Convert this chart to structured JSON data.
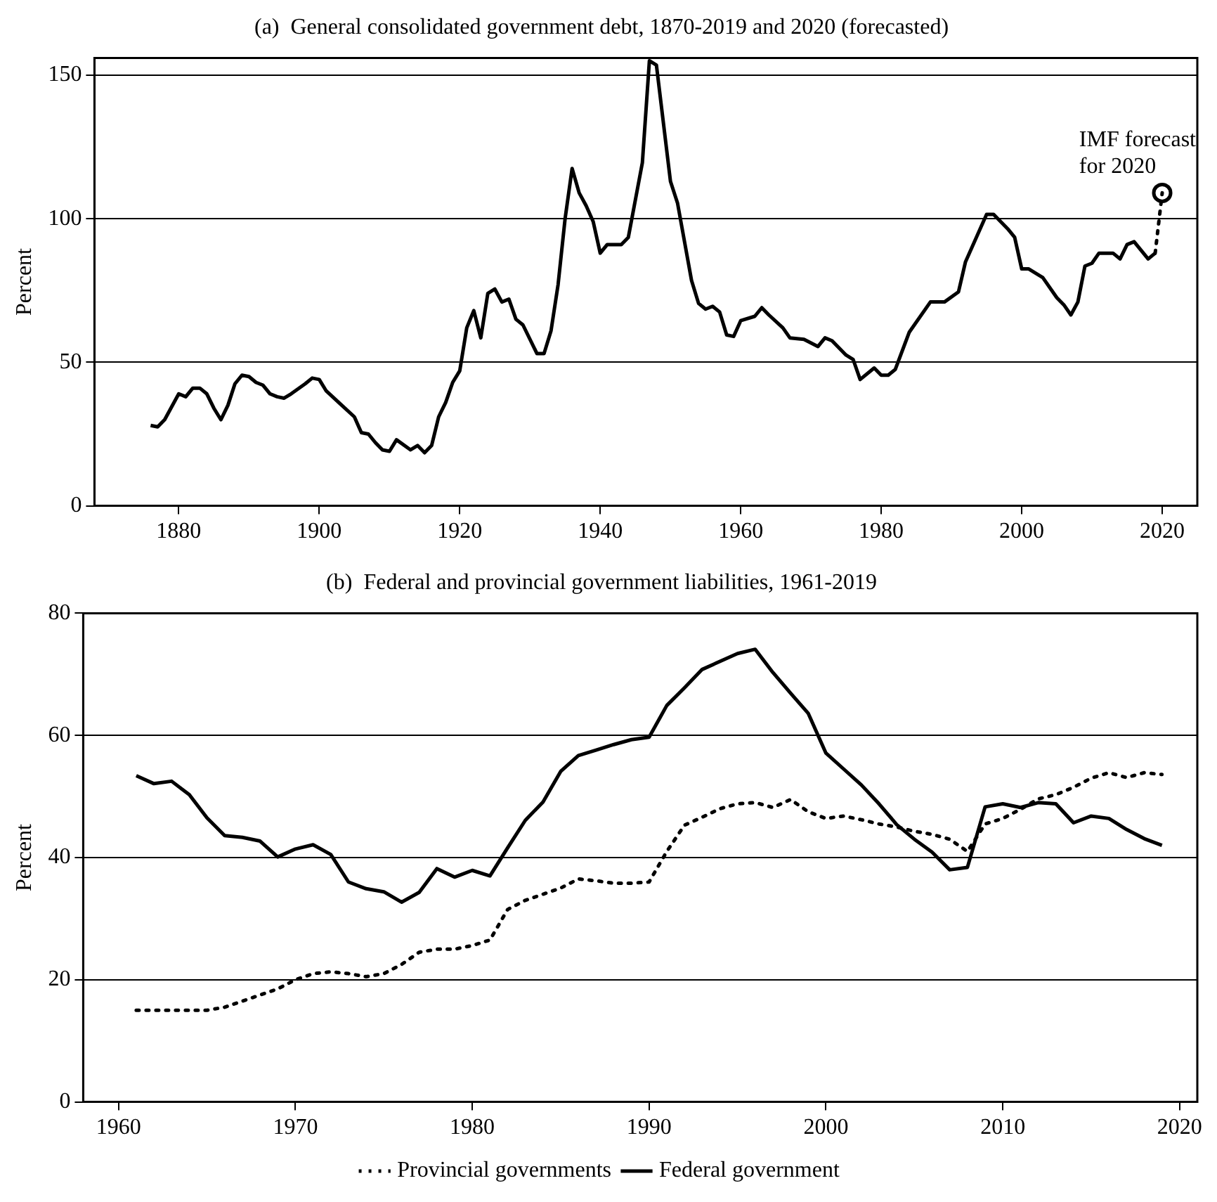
{
  "chart_data": [
    {
      "type": "line",
      "title": "(a)  General consolidated government debt, 1870-2019 and 2020 (forecasted)",
      "ylabel": "Percent",
      "xlim": [
        1868,
        2025
      ],
      "xticks": [
        1880,
        1900,
        1920,
        1940,
        1960,
        1980,
        2000,
        2020
      ],
      "ylim": [
        0,
        156
      ],
      "yticks": [
        0,
        50,
        100,
        150
      ],
      "grid": "y",
      "legend": false,
      "marker": "none",
      "series": [
        {
          "color": "#000000",
          "line_style": "solid",
          "x": [
            1876,
            1877,
            1878,
            1880,
            1881,
            1882,
            1883,
            1884,
            1885,
            1886,
            1887,
            1888,
            1889,
            1890,
            1891,
            1892,
            1893,
            1894,
            1895,
            1896,
            1898,
            1899,
            1900,
            1901,
            1903,
            1905,
            1906,
            1907,
            1908,
            1909,
            1910,
            1911,
            1913,
            1914,
            1915,
            1916,
            1917,
            1918,
            1919,
            1920,
            1921,
            1922,
            1923,
            1924,
            1925,
            1926,
            1927,
            1928,
            1929,
            1931,
            1932,
            1933,
            1934,
            1935,
            1936,
            1937,
            1938,
            1939,
            1940,
            1941,
            1943,
            1944,
            1946,
            1947,
            1948,
            1950,
            1951,
            1953,
            1954,
            1955,
            1956,
            1957,
            1958,
            1959,
            1960,
            1962,
            1963,
            1964,
            1966,
            1967,
            1969,
            1971,
            1972,
            1973,
            1975,
            1976,
            1977,
            1979,
            1980,
            1981,
            1982,
            1984,
            1987,
            1988,
            1989,
            1991,
            1992,
            1994,
            1995,
            1996,
            1998,
            1999,
            2000,
            2001,
            2003,
            2005,
            2006,
            2007,
            2008,
            2009,
            2010,
            2011,
            2013,
            2014,
            2015,
            2016,
            2017,
            2018,
            2019
          ],
          "values": [
            28,
            27.5,
            30,
            39,
            38,
            41,
            41,
            39,
            34,
            30,
            35,
            42.5,
            45.5,
            45,
            43,
            42,
            39,
            38,
            37.5,
            39,
            42.5,
            44.5,
            44,
            40,
            35.5,
            31,
            25.5,
            25,
            22,
            19.5,
            19,
            23,
            19.5,
            21,
            18.5,
            21,
            31,
            36,
            43,
            47,
            62,
            68,
            58.5,
            74,
            75.5,
            71,
            72,
            65,
            63,
            53,
            53,
            61,
            77,
            100,
            117.5,
            109,
            104.5,
            99,
            88,
            91,
            91,
            93.5,
            119.5,
            155,
            153.5,
            113,
            105.5,
            78.5,
            70.5,
            68.5,
            69.5,
            67.5,
            59.5,
            59,
            64.5,
            66,
            69,
            66.5,
            62,
            58.5,
            58,
            55.5,
            58.5,
            57.5,
            52.5,
            51,
            44,
            48,
            45.5,
            45.5,
            47.5,
            60.5,
            71,
            71,
            71,
            74.5,
            85,
            96,
            101.5,
            101.5,
            96.5,
            93.5,
            82.5,
            82.5,
            79.5,
            72.5,
            70,
            66.5,
            71,
            83.5,
            84.5,
            88,
            88,
            86,
            91,
            92,
            89,
            86,
            88
          ]
        },
        {
          "color": "#000000",
          "line_style": "dotted",
          "x": [
            2019,
            2020
          ],
          "values": [
            88,
            109
          ]
        },
        {
          "type": "scatter",
          "color": "#000000",
          "marker": "circle",
          "x": [
            2020
          ],
          "values": [
            109
          ]
        }
      ],
      "annotations": [
        {
          "text": "IMF forecast for 2020",
          "x": 2020,
          "y": 109
        }
      ]
    },
    {
      "type": "line",
      "title": "(b)  Federal and provincial government liabilities, 1961-2019",
      "ylabel": "Percent",
      "xlim": [
        1958,
        2021
      ],
      "xticks": [
        1960,
        1970,
        1980,
        1990,
        2000,
        2010,
        2020
      ],
      "ylim": [
        0,
        80
      ],
      "yticks": [
        0,
        20,
        40,
        60,
        80
      ],
      "grid": "y",
      "legend": "bottom",
      "marker": "none",
      "series": [
        {
          "name": "Provincial governments",
          "color": "#000000",
          "line_style": "dotted",
          "x": [
            1961,
            1962,
            1963,
            1964,
            1965,
            1966,
            1967,
            1968,
            1969,
            1970,
            1971,
            1972,
            1973,
            1974,
            1975,
            1976,
            1977,
            1978,
            1979,
            1980,
            1981,
            1982,
            1983,
            1984,
            1985,
            1986,
            1987,
            1988,
            1989,
            1990,
            1991,
            1992,
            1993,
            1994,
            1995,
            1996,
            1997,
            1998,
            1999,
            2000,
            2001,
            2002,
            2003,
            2004,
            2005,
            2006,
            2007,
            2008,
            2009,
            2010,
            2011,
            2012,
            2013,
            2014,
            2015,
            2016,
            2017,
            2018,
            2019
          ],
          "values": [
            15,
            15,
            15,
            15,
            15,
            15.5,
            16.5,
            17.5,
            18.5,
            20,
            21,
            21.3,
            21,
            20.5,
            21,
            22.5,
            24.5,
            25,
            25,
            25.6,
            26.5,
            31.5,
            33,
            34,
            35,
            36.5,
            36.2,
            35.8,
            35.8,
            36,
            41,
            45.3,
            46.6,
            48,
            48.8,
            49,
            48.2,
            49.5,
            47.5,
            46.4,
            46.8,
            46.2,
            45.5,
            45,
            44.3,
            43.8,
            43,
            41,
            45.5,
            46.4,
            47.9,
            49.6,
            50.3,
            51.5,
            53,
            53.9,
            53.1,
            53.9,
            53.6
          ]
        },
        {
          "name": "Federal government",
          "color": "#000000",
          "line_style": "solid",
          "x": [
            1961,
            1962,
            1963,
            1964,
            1965,
            1966,
            1967,
            1968,
            1969,
            1970,
            1971,
            1972,
            1973,
            1974,
            1975,
            1976,
            1977,
            1978,
            1979,
            1980,
            1981,
            1982,
            1983,
            1984,
            1985,
            1986,
            1987,
            1988,
            1989,
            1990,
            1991,
            1992,
            1993,
            1995,
            1996,
            1997,
            1998,
            1999,
            2000,
            2001,
            2002,
            2003,
            2004,
            2005,
            2006,
            2007,
            2008,
            2009,
            2010,
            2011,
            2012,
            2013,
            2014,
            2015,
            2016,
            2017,
            2018,
            2019
          ],
          "values": [
            53.4,
            52.1,
            52.5,
            50.3,
            46.5,
            43.6,
            43.3,
            42.7,
            40.1,
            41.4,
            42.1,
            40.5,
            36,
            34.9,
            34.4,
            32.7,
            34.3,
            38.2,
            36.8,
            37.9,
            37,
            41.6,
            46.1,
            49.1,
            54.1,
            56.7,
            57.6,
            58.5,
            59.3,
            59.7,
            64.9,
            67.8,
            70.8,
            73.4,
            74.1,
            70.3,
            66.9,
            63.6,
            57.1,
            54.5,
            51.9,
            48.8,
            45.4,
            43,
            40.9,
            38,
            38.4,
            48.3,
            48.8,
            48.2,
            49,
            48.8,
            45.7,
            46.8,
            46.4,
            44.6,
            43.1,
            42
          ]
        }
      ]
    }
  ]
}
